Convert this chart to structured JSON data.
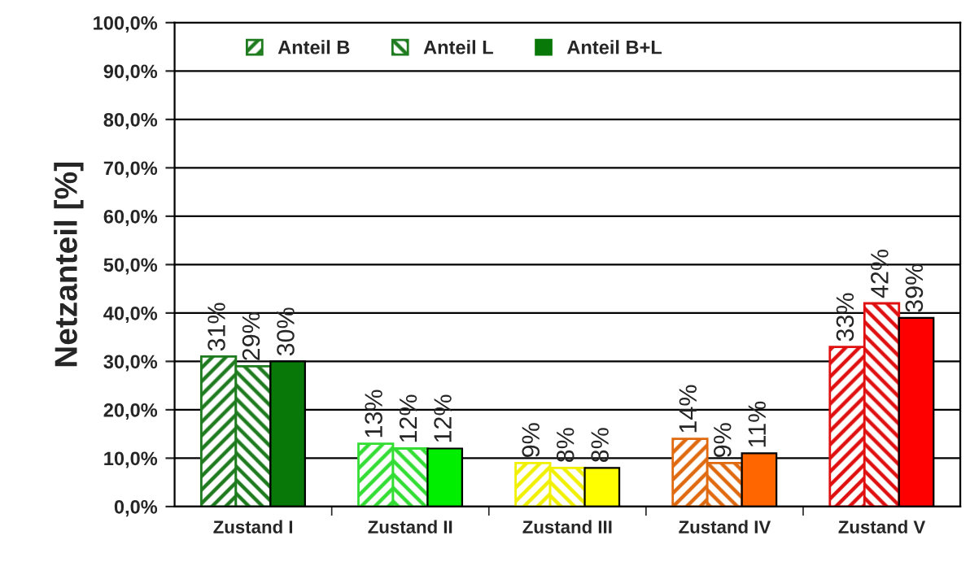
{
  "chart_data": {
    "type": "bar",
    "ylabel": "Netzanteil [%]",
    "categories": [
      "Zustand I",
      "Zustand II",
      "Zustand III",
      "Zustand IV",
      "Zustand V"
    ],
    "series": [
      {
        "name": "Anteil B",
        "colors": [
          "#1e7b1e",
          "#33dd33",
          "#f0f000",
          "#e06a10",
          "#e01010"
        ],
        "values": [
          31,
          13,
          9,
          14,
          33
        ],
        "value_labels": [
          "31%",
          "13%",
          "9%",
          "14%",
          "33%"
        ]
      },
      {
        "name": "Anteil L",
        "colors": [
          "#1e7b1e",
          "#33dd33",
          "#f0f000",
          "#e06a10",
          "#e01010"
        ],
        "values": [
          29,
          12,
          8,
          9,
          42
        ],
        "value_labels": [
          "29%",
          "12%",
          "8%",
          "9%",
          "42%"
        ]
      },
      {
        "name": "Anteil B+L",
        "colors": [
          "#087808",
          "#00ee00",
          "#ffff00",
          "#ff6600",
          "#ff0000"
        ],
        "values": [
          30,
          12,
          8,
          11,
          39
        ],
        "value_labels": [
          "30%",
          "12%",
          "8%",
          "11%",
          "39%"
        ]
      }
    ],
    "ylim": [
      0,
      100
    ],
    "yticks": [
      {
        "value": 0,
        "label": "0,0%"
      },
      {
        "value": 10,
        "label": "10,0%"
      },
      {
        "value": 20,
        "label": "20,0%"
      },
      {
        "value": 30,
        "label": "30,0%"
      },
      {
        "value": 40,
        "label": "40,0%"
      },
      {
        "value": 50,
        "label": "50,0%"
      },
      {
        "value": 60,
        "label": "60,0%"
      },
      {
        "value": 70,
        "label": "70,0%"
      },
      {
        "value": 80,
        "label": "80,0%"
      },
      {
        "value": 90,
        "label": "90,0%"
      },
      {
        "value": 100,
        "label": "100,0%"
      }
    ],
    "grid": "y",
    "legend": "top left"
  }
}
